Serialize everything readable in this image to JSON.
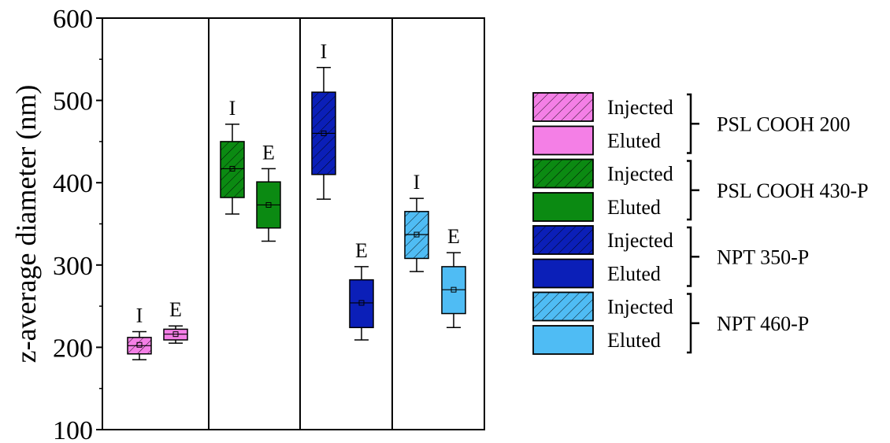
{
  "chart_data": {
    "type": "box",
    "ylabel": "z-average diameter (nm)",
    "ylim": [
      100,
      600
    ],
    "yticks": [
      100,
      200,
      300,
      400,
      500,
      600
    ],
    "grid": false,
    "legend_position": "right",
    "groups": [
      {
        "name": "PSL COOH 200",
        "color": "#f47fe6",
        "boxes": [
          {
            "label": "I",
            "legend": "Injected",
            "hatched": true,
            "whisker_low": 185,
            "q1": 192,
            "median": 202,
            "mean": 203,
            "q3": 212,
            "whisker_high": 219
          },
          {
            "label": "E",
            "legend": "Eluted",
            "hatched": false,
            "whisker_low": 205,
            "q1": 209,
            "median": 216,
            "mean": 216,
            "q3": 222,
            "whisker_high": 226
          }
        ]
      },
      {
        "name": "PSL COOH 430-P",
        "color": "#0b8a12",
        "boxes": [
          {
            "label": "I",
            "legend": "Injected",
            "hatched": true,
            "whisker_low": 362,
            "q1": 382,
            "median": 417,
            "mean": 417,
            "q3": 450,
            "whisker_high": 471
          },
          {
            "label": "E",
            "legend": "Eluted",
            "hatched": false,
            "whisker_low": 329,
            "q1": 345,
            "median": 373,
            "mean": 373,
            "q3": 401,
            "whisker_high": 417
          }
        ]
      },
      {
        "name": "NPT 350-P",
        "color": "#0b1fb8",
        "boxes": [
          {
            "label": "I",
            "legend": "Injected",
            "hatched": true,
            "whisker_low": 380,
            "q1": 410,
            "median": 460,
            "mean": 460,
            "q3": 510,
            "whisker_high": 540
          },
          {
            "label": "E",
            "legend": "Eluted",
            "hatched": false,
            "whisker_low": 209,
            "q1": 224,
            "median": 254,
            "mean": 254,
            "q3": 282,
            "whisker_high": 298
          }
        ]
      },
      {
        "name": "NPT 460-P",
        "color": "#4fbcf4",
        "boxes": [
          {
            "label": "I",
            "legend": "Injected",
            "hatched": true,
            "whisker_low": 292,
            "q1": 308,
            "median": 337,
            "mean": 337,
            "q3": 365,
            "whisker_high": 381
          },
          {
            "label": "E",
            "legend": "Eluted",
            "hatched": false,
            "whisker_low": 224,
            "q1": 241,
            "median": 270,
            "mean": 270,
            "q3": 298,
            "whisker_high": 315
          }
        ]
      }
    ]
  }
}
